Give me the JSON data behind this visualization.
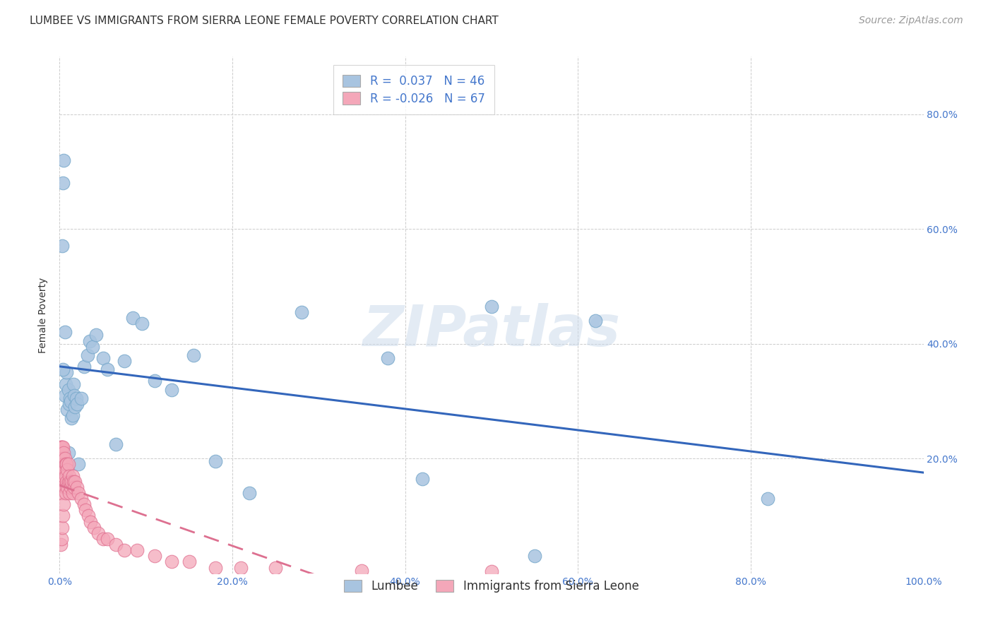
{
  "title": "LUMBEE VS IMMIGRANTS FROM SIERRA LEONE FEMALE POVERTY CORRELATION CHART",
  "source": "Source: ZipAtlas.com",
  "ylabel": "Female Poverty",
  "xlim": [
    0.0,
    1.0
  ],
  "ylim": [
    0.0,
    0.9
  ],
  "xticks": [
    0.0,
    0.2,
    0.4,
    0.6,
    0.8,
    1.0
  ],
  "xticklabels": [
    "0.0%",
    "20.0%",
    "40.0%",
    "60.0%",
    "80.0%",
    "100.0%"
  ],
  "yticks": [
    0.0,
    0.2,
    0.4,
    0.6,
    0.8
  ],
  "yticklabels": [
    "",
    "20.0%",
    "40.0%",
    "60.0%",
    "80.0%"
  ],
  "grid_color": "#cccccc",
  "background_color": "#ffffff",
  "lumbee_color": "#a8c4e0",
  "lumbee_edge_color": "#7aaacc",
  "sierra_leone_color": "#f4a7b9",
  "sierra_leone_edge_color": "#e07090",
  "lumbee_line_color": "#3366bb",
  "sierra_leone_line_color": "#dd7090",
  "tick_color": "#4477cc",
  "title_color": "#333333",
  "source_color": "#999999",
  "lumbee_R": 0.037,
  "lumbee_N": 46,
  "sierra_leone_R": -0.026,
  "sierra_leone_N": 67,
  "watermark": "ZIPatlas",
  "legend_label_lumbee": "Lumbee",
  "legend_label_sierra": "Immigrants from Sierra Leone",
  "lumbee_x": [
    0.003,
    0.004,
    0.005,
    0.006,
    0.007,
    0.008,
    0.009,
    0.01,
    0.01,
    0.011,
    0.012,
    0.013,
    0.014,
    0.015,
    0.016,
    0.017,
    0.018,
    0.019,
    0.02,
    0.022,
    0.025,
    0.028,
    0.032,
    0.035,
    0.038,
    0.042,
    0.05,
    0.055,
    0.065,
    0.075,
    0.085,
    0.095,
    0.11,
    0.13,
    0.155,
    0.18,
    0.22,
    0.28,
    0.38,
    0.42,
    0.5,
    0.55,
    0.62,
    0.82,
    0.004,
    0.006
  ],
  "lumbee_y": [
    0.57,
    0.68,
    0.72,
    0.31,
    0.33,
    0.35,
    0.285,
    0.32,
    0.21,
    0.295,
    0.305,
    0.3,
    0.27,
    0.275,
    0.33,
    0.31,
    0.29,
    0.305,
    0.295,
    0.19,
    0.305,
    0.36,
    0.38,
    0.405,
    0.395,
    0.415,
    0.375,
    0.355,
    0.225,
    0.37,
    0.445,
    0.435,
    0.335,
    0.32,
    0.38,
    0.195,
    0.14,
    0.455,
    0.375,
    0.165,
    0.465,
    0.03,
    0.44,
    0.13,
    0.355,
    0.42
  ],
  "sierra_leone_x": [
    0.001,
    0.001,
    0.001,
    0.001,
    0.001,
    0.002,
    0.002,
    0.002,
    0.002,
    0.002,
    0.002,
    0.003,
    0.003,
    0.003,
    0.003,
    0.004,
    0.004,
    0.004,
    0.004,
    0.005,
    0.005,
    0.005,
    0.005,
    0.006,
    0.006,
    0.006,
    0.007,
    0.007,
    0.007,
    0.008,
    0.008,
    0.009,
    0.009,
    0.01,
    0.01,
    0.011,
    0.011,
    0.012,
    0.013,
    0.014,
    0.015,
    0.015,
    0.016,
    0.017,
    0.018,
    0.02,
    0.022,
    0.025,
    0.028,
    0.03,
    0.033,
    0.036,
    0.04,
    0.045,
    0.05,
    0.055,
    0.065,
    0.075,
    0.09,
    0.11,
    0.13,
    0.15,
    0.18,
    0.21,
    0.25,
    0.35,
    0.5
  ],
  "sierra_leone_y": [
    0.22,
    0.2,
    0.18,
    0.16,
    0.05,
    0.22,
    0.2,
    0.18,
    0.16,
    0.14,
    0.06,
    0.22,
    0.2,
    0.18,
    0.08,
    0.22,
    0.2,
    0.17,
    0.1,
    0.21,
    0.19,
    0.17,
    0.12,
    0.2,
    0.18,
    0.15,
    0.19,
    0.17,
    0.14,
    0.19,
    0.16,
    0.18,
    0.15,
    0.19,
    0.16,
    0.17,
    0.14,
    0.16,
    0.15,
    0.16,
    0.17,
    0.14,
    0.16,
    0.15,
    0.16,
    0.15,
    0.14,
    0.13,
    0.12,
    0.11,
    0.1,
    0.09,
    0.08,
    0.07,
    0.06,
    0.06,
    0.05,
    0.04,
    0.04,
    0.03,
    0.02,
    0.02,
    0.01,
    0.01,
    0.01,
    0.005,
    0.003
  ],
  "title_fontsize": 11,
  "axis_label_fontsize": 10,
  "tick_fontsize": 10,
  "legend_fontsize": 12,
  "source_fontsize": 10
}
